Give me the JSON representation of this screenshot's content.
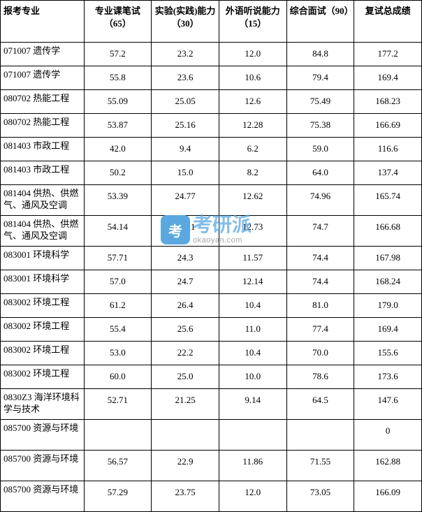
{
  "watermark": {
    "badge": "考",
    "main": "考研派",
    "sub": "okaoyan.com"
  },
  "table": {
    "headers": [
      "报考专业",
      "专业课笔试（65）",
      "实验(实践)能力（30）",
      "外语听说能力（15）",
      "综合面试（90）",
      "复试总成绩"
    ],
    "rows": [
      {
        "major": "071007 遗传学",
        "s1": "57.2",
        "s2": "23.2",
        "s3": "12.0",
        "s4": "84.8",
        "total": "177.2",
        "tall": false
      },
      {
        "major": "071007 遗传学",
        "s1": "55.8",
        "s2": "23.6",
        "s3": "10.6",
        "s4": "79.4",
        "total": "169.4",
        "tall": false
      },
      {
        "major": "080702 热能工程",
        "s1": "55.09",
        "s2": "25.05",
        "s3": "12.6",
        "s4": "75.49",
        "total": "168.23",
        "tall": false
      },
      {
        "major": "080702 热能工程",
        "s1": "53.87",
        "s2": "25.16",
        "s3": "12.28",
        "s4": "75.38",
        "total": "166.69",
        "tall": false
      },
      {
        "major": "081403 市政工程",
        "s1": "42.0",
        "s2": "9.4",
        "s3": "6.2",
        "s4": "59.0",
        "total": "116.6",
        "tall": false
      },
      {
        "major": "081403 市政工程",
        "s1": "50.2",
        "s2": "15.0",
        "s3": "8.2",
        "s4": "64.0",
        "total": "137.4",
        "tall": false
      },
      {
        "major": "081404 供热、供燃气、通风及空调",
        "s1": "53.39",
        "s2": "24.77",
        "s3": "12.62",
        "s4": "74.96",
        "total": "165.74",
        "tall": true
      },
      {
        "major": "081404 供热、供燃气、通风及空调",
        "s1": "54.14",
        "s2": "25.11",
        "s3": "12.73",
        "s4": "74.7",
        "total": "166.68",
        "tall": true
      },
      {
        "major": "083001 环境科学",
        "s1": "57.71",
        "s2": "24.3",
        "s3": "11.57",
        "s4": "74.4",
        "total": "167.98",
        "tall": false
      },
      {
        "major": "083001 环境科学",
        "s1": "57.0",
        "s2": "24.7",
        "s3": "12.14",
        "s4": "74.4",
        "total": "168.24",
        "tall": false
      },
      {
        "major": "083002 环境工程",
        "s1": "61.2",
        "s2": "26.4",
        "s3": "10.4",
        "s4": "81.0",
        "total": "179.0",
        "tall": false
      },
      {
        "major": "083002 环境工程",
        "s1": "55.4",
        "s2": "25.6",
        "s3": "11.0",
        "s4": "77.4",
        "total": "169.4",
        "tall": false
      },
      {
        "major": "083002 环境工程",
        "s1": "53.0",
        "s2": "22.2",
        "s3": "10.4",
        "s4": "70.0",
        "total": "155.6",
        "tall": false
      },
      {
        "major": "083002 环境工程",
        "s1": "60.0",
        "s2": "25.0",
        "s3": "10.0",
        "s4": "78.6",
        "total": "173.6",
        "tall": false
      },
      {
        "major": "0830Z3 海洋环境科学与技术",
        "s1": "52.71",
        "s2": "21.25",
        "s3": "9.14",
        "s4": "64.5",
        "total": "147.6",
        "tall": true
      },
      {
        "major": "085700 资源与环境",
        "s1": "",
        "s2": "",
        "s3": "",
        "s4": "",
        "total": "0",
        "tall": true
      },
      {
        "major": "085700 资源与环境",
        "s1": "56.57",
        "s2": "22.9",
        "s3": "11.86",
        "s4": "71.55",
        "total": "162.88",
        "tall": true
      },
      {
        "major": "085700 资源与环境",
        "s1": "57.29",
        "s2": "23.75",
        "s3": "12.0",
        "s4": "73.05",
        "total": "166.09",
        "tall": true
      }
    ]
  }
}
